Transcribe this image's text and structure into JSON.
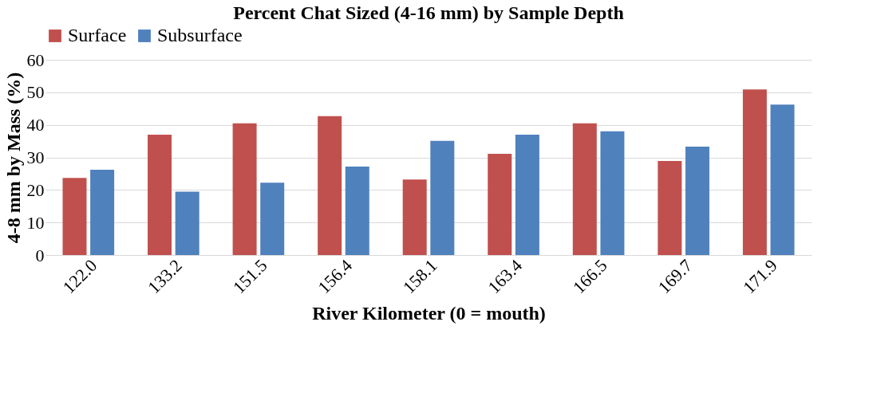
{
  "chart_data": {
    "type": "bar",
    "title": "Percent Chat Sized (4-16 mm) by Sample Depth",
    "xlabel": "River Kilometer (0 = mouth)",
    "ylabel": "4-8 mm by Mass (%)",
    "categories": [
      "122.0",
      "133.2",
      "151.5",
      "156.4",
      "158.1",
      "163.4",
      "166.5",
      "169.7",
      "171.9"
    ],
    "series": [
      {
        "name": "Surface",
        "color": "#c0504d",
        "values": [
          23.7,
          37.0,
          40.5,
          42.7,
          23.2,
          31.1,
          40.5,
          28.9,
          50.9
        ]
      },
      {
        "name": "Subsurface",
        "color": "#4f81bd",
        "values": [
          26.2,
          19.5,
          22.2,
          27.2,
          35.1,
          37.0,
          38.0,
          33.3,
          46.2
        ]
      }
    ],
    "ylim": [
      0,
      60
    ],
    "yticks": [
      0,
      10,
      20,
      30,
      40,
      50,
      60
    ],
    "grid": "y",
    "legend": "top"
  }
}
